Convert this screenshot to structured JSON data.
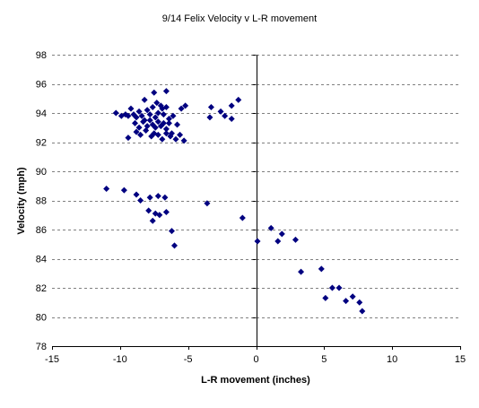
{
  "chart_data": {
    "type": "scatter",
    "title": "9/14 Felix Velocity v L-R movement",
    "xlabel": "L-R movement (inches)",
    "ylabel": "Velocity (mph)",
    "xlim": [
      -15,
      15
    ],
    "ylim": [
      78,
      98
    ],
    "x_ticks": [
      -15,
      -10,
      -5,
      0,
      5,
      10,
      15
    ],
    "y_ticks": [
      78,
      80,
      82,
      84,
      86,
      88,
      90,
      92,
      94,
      96,
      98
    ],
    "grid": "horizontal dashed",
    "legend": "none",
    "marker": "diamond",
    "colors": {
      "marker": "#000080",
      "grid": "#808080",
      "axis": "#000000",
      "background": "#ffffff"
    },
    "points": [
      [
        -10.3,
        94.0
      ],
      [
        -9.9,
        93.8
      ],
      [
        -9.6,
        93.9
      ],
      [
        -9.4,
        93.8
      ],
      [
        -9.2,
        94.3
      ],
      [
        -9.0,
        93.9
      ],
      [
        -8.8,
        93.7
      ],
      [
        -8.6,
        94.1
      ],
      [
        -8.4,
        93.8
      ],
      [
        -8.2,
        93.5
      ],
      [
        -8.0,
        94.2
      ],
      [
        -7.8,
        93.9
      ],
      [
        -7.6,
        94.4
      ],
      [
        -7.4,
        93.7
      ],
      [
        -7.2,
        94.0
      ],
      [
        -7.0,
        94.5
      ],
      [
        -6.8,
        93.9
      ],
      [
        -6.6,
        94.4
      ],
      [
        -6.4,
        93.6
      ],
      [
        -6.1,
        93.8
      ],
      [
        -5.8,
        93.2
      ],
      [
        -5.5,
        94.3
      ],
      [
        -5.2,
        94.5
      ],
      [
        -8.9,
        93.3
      ],
      [
        -8.6,
        93.0
      ],
      [
        -8.3,
        93.4
      ],
      [
        -8.0,
        93.1
      ],
      [
        -7.8,
        93.5
      ],
      [
        -7.6,
        93.2
      ],
      [
        -7.4,
        93.0
      ],
      [
        -7.2,
        93.4
      ],
      [
        -7.0,
        93.1
      ],
      [
        -6.8,
        93.3
      ],
      [
        -6.6,
        92.9
      ],
      [
        -6.4,
        93.3
      ],
      [
        -6.2,
        92.6
      ],
      [
        -9.4,
        92.3
      ],
      [
        -8.8,
        92.7
      ],
      [
        -8.5,
        92.5
      ],
      [
        -8.1,
        92.8
      ],
      [
        -7.7,
        92.4
      ],
      [
        -7.5,
        92.6
      ],
      [
        -7.2,
        92.5
      ],
      [
        -6.9,
        92.2
      ],
      [
        -6.6,
        92.6
      ],
      [
        -6.3,
        92.4
      ],
      [
        -5.9,
        92.2
      ],
      [
        -5.6,
        92.5
      ],
      [
        -5.3,
        92.1
      ],
      [
        -7.5,
        95.4
      ],
      [
        -6.6,
        95.5
      ],
      [
        -8.2,
        94.9
      ],
      [
        -7.3,
        94.7
      ],
      [
        -6.9,
        94.3
      ],
      [
        -3.3,
        94.4
      ],
      [
        -2.6,
        94.1
      ],
      [
        -2.3,
        93.8
      ],
      [
        -1.8,
        94.5
      ],
      [
        -1.3,
        94.9
      ],
      [
        -3.4,
        93.7
      ],
      [
        -1.8,
        93.6
      ],
      [
        -11.0,
        88.8
      ],
      [
        -9.7,
        88.7
      ],
      [
        -8.8,
        88.4
      ],
      [
        -8.5,
        88.0
      ],
      [
        -7.8,
        88.2
      ],
      [
        -7.2,
        88.3
      ],
      [
        -6.7,
        88.2
      ],
      [
        -7.9,
        87.3
      ],
      [
        -7.4,
        87.1
      ],
      [
        -7.1,
        87.0
      ],
      [
        -6.6,
        87.2
      ],
      [
        -7.6,
        86.6
      ],
      [
        -6.2,
        85.9
      ],
      [
        -6.0,
        84.9
      ],
      [
        -3.6,
        87.8
      ],
      [
        -1.0,
        86.8
      ],
      [
        0.1,
        85.2
      ],
      [
        1.1,
        86.1
      ],
      [
        1.6,
        85.2
      ],
      [
        1.9,
        85.7
      ],
      [
        2.9,
        85.3
      ],
      [
        3.3,
        83.1
      ],
      [
        4.8,
        83.3
      ],
      [
        5.1,
        81.3
      ],
      [
        5.6,
        82.0
      ],
      [
        6.1,
        82.0
      ],
      [
        6.6,
        81.1
      ],
      [
        7.1,
        81.4
      ],
      [
        7.6,
        81.0
      ],
      [
        7.8,
        80.4
      ]
    ]
  }
}
